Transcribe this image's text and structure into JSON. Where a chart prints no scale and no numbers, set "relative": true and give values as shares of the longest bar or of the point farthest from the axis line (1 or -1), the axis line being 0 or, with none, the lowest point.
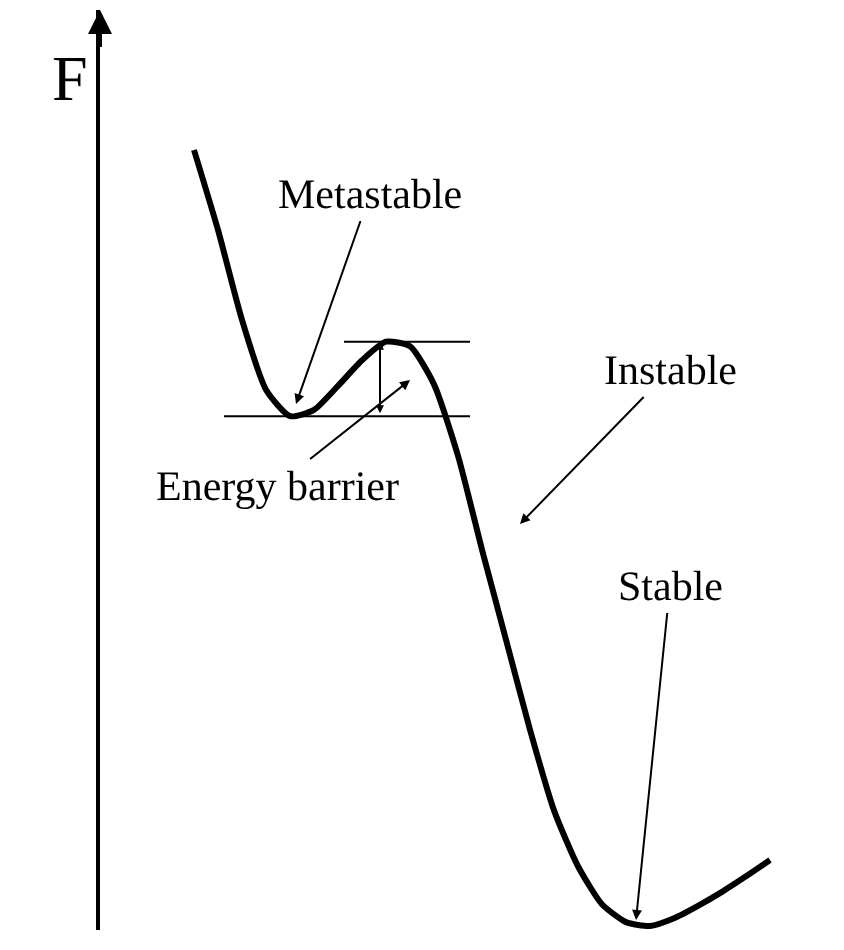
{
  "chart_data": {
    "type": "line",
    "relative": true,
    "ylabel": "F",
    "categories": [
      null,
      null,
      null,
      null,
      null,
      null,
      null,
      null,
      null,
      null,
      null,
      null,
      null,
      null,
      null,
      null,
      null,
      null,
      null,
      null,
      null,
      null,
      null,
      null,
      null
    ],
    "series": [
      {
        "color": "#000000",
        "values": [
          1.0,
          0.897,
          0.781,
          0.691,
          0.657,
          0.665,
          0.696,
          0.729,
          0.753,
          0.747,
          0.698,
          0.606,
          0.485,
          0.369,
          0.253,
          0.149,
          0.077,
          0.028,
          0.005,
          0.0,
          0.01,
          0.026,
          0.044,
          0.064,
          0.085
        ]
      }
    ],
    "annotations": [
      "Metastable",
      "Energy barrier",
      "Instable",
      "Stable"
    ],
    "ref_lines": [
      {
        "axis": "y",
        "value": 0.657,
        "color": "#000000"
      },
      {
        "axis": "y",
        "value": 0.753,
        "color": "#000000"
      }
    ],
    "marker": "none",
    "line_style": "solid"
  }
}
